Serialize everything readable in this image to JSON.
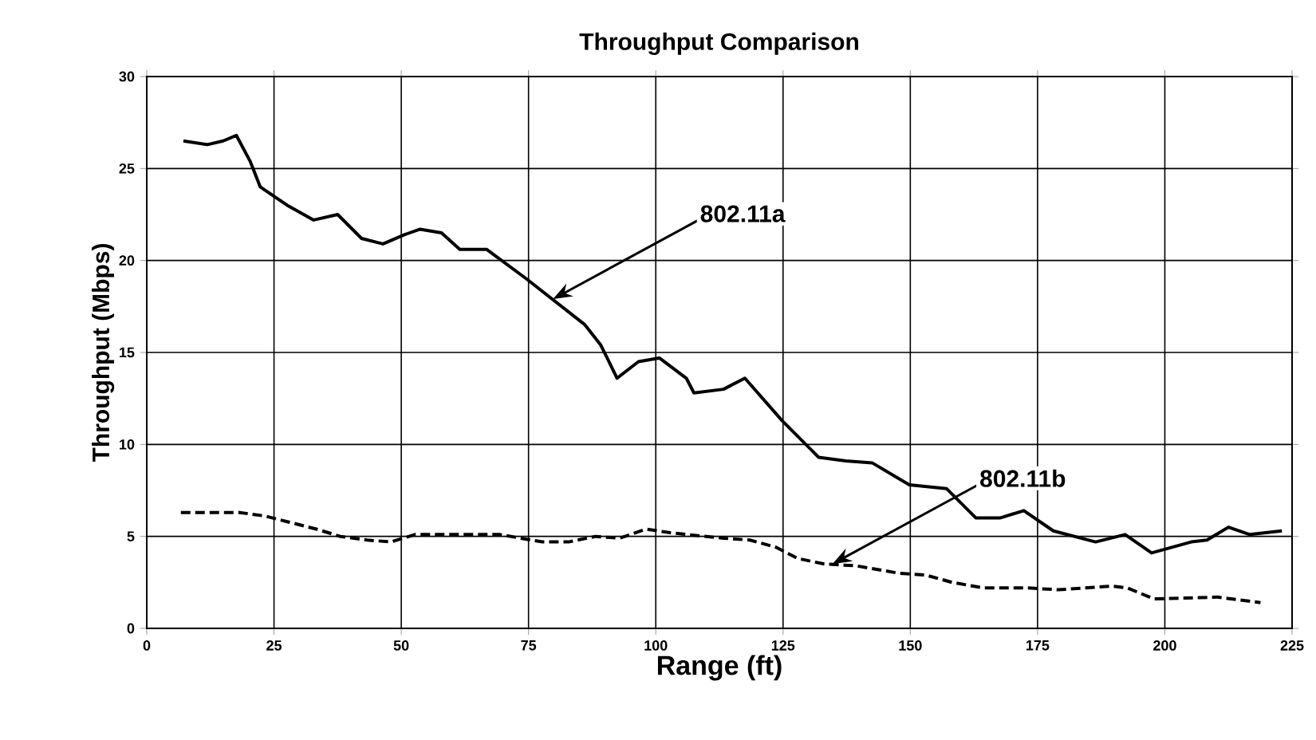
{
  "chart_data": {
    "type": "line",
    "title": "Throughput Comparison",
    "xlabel": "Range (ft)",
    "ylabel": "Throughput (Mbps)",
    "xlim": [
      0,
      225
    ],
    "ylim": [
      0,
      30
    ],
    "xticks": [
      0,
      25,
      50,
      75,
      100,
      125,
      150,
      175,
      200,
      225
    ],
    "yticks": [
      0,
      5,
      10,
      15,
      20,
      25,
      30
    ],
    "grid": true,
    "series": [
      {
        "color": "#000000",
        "line_style": "solid",
        "x": [
          7.2,
          11.9,
          15,
          17.6,
          20.3,
          22.3,
          27.6,
          32.8,
          37.5,
          42.2,
          46.4,
          50.6,
          53.7,
          57.9,
          61.5,
          66.8,
          74.6,
          86.1,
          89.2,
          92.4,
          96.6,
          100.7,
          106,
          107.5,
          113.3,
          117.5,
          124.8,
          132,
          137.3,
          142.5,
          149.8,
          157.1,
          162.9,
          167.6,
          172.3,
          178.1,
          186.4,
          192.2,
          197.4,
          205.2,
          208.3,
          212.5,
          216.7,
          223
        ],
        "values": [
          26.5,
          26.3,
          26.5,
          26.8,
          25.4,
          24.0,
          23.0,
          22.2,
          22.5,
          21.2,
          20.9,
          21.4,
          21.7,
          21.5,
          20.6,
          20.6,
          19.0,
          16.5,
          15.4,
          13.6,
          14.5,
          14.7,
          13.6,
          12.8,
          13.0,
          13.6,
          11.3,
          9.3,
          9.1,
          9.0,
          7.8,
          7.6,
          6.0,
          6.0,
          6.4,
          5.3,
          4.7,
          5.1,
          4.1,
          4.7,
          4.8,
          5.5,
          5.1,
          5.3
        ]
      },
      {
        "color": "#000000",
        "line_style": "dashed",
        "x": [
          6.7,
          18.2,
          23.4,
          27.6,
          33.3,
          38,
          43.3,
          48,
          52.7,
          69.4,
          73.5,
          77.7,
          82.9,
          88.2,
          92.9,
          98.1,
          102.8,
          113.3,
          118.5,
          123.7,
          127.9,
          133.1,
          139.4,
          147.7,
          153,
          158.2,
          164.4,
          172.8,
          179.1,
          189.5,
          192.6,
          197.9,
          210.4,
          218.8
        ],
        "values": [
          6.3,
          6.3,
          6.1,
          5.8,
          5.4,
          5.0,
          4.8,
          4.7,
          5.1,
          5.1,
          4.9,
          4.7,
          4.7,
          5.0,
          4.9,
          5.4,
          5.2,
          4.9,
          4.8,
          4.4,
          3.8,
          3.5,
          3.4,
          3.0,
          2.9,
          2.5,
          2.2,
          2.2,
          2.1,
          2.3,
          2.2,
          1.6,
          1.7,
          1.4
        ]
      }
    ],
    "annotations": [
      {
        "text": "802.11a",
        "x": 79.8,
        "y": 17.9
      },
      {
        "text": "802.11b",
        "x": 134.7,
        "y": 3.5
      }
    ]
  }
}
